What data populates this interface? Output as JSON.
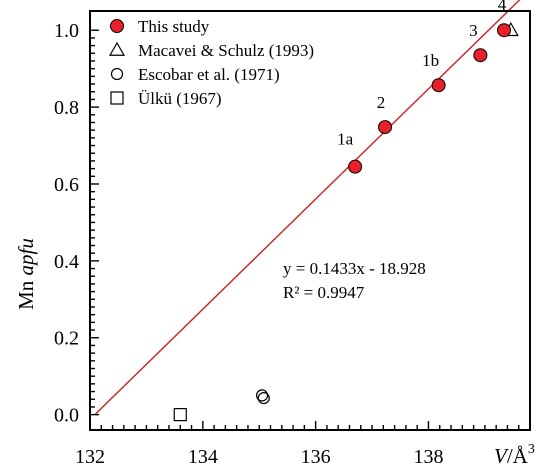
{
  "chart_data": {
    "type": "scatter",
    "xlabel": {
      "italic": "V",
      "rest": "/Å",
      "sup": "3"
    },
    "ylabel": {
      "plain": "Mn ",
      "italic": "apfu"
    },
    "xlim": [
      132,
      139.8
    ],
    "ylim": [
      -0.04,
      1.05
    ],
    "xticks": [
      132,
      134,
      136,
      138
    ],
    "xtick_labels": [
      "132",
      "134",
      "136",
      "138"
    ],
    "yticks": [
      0.0,
      0.2,
      0.4,
      0.6,
      0.8,
      1.0
    ],
    "ytick_labels": [
      "0.0",
      "0.2",
      "0.4",
      "0.6",
      "0.8",
      "1.0"
    ],
    "grid": false,
    "legend_position": "top-left",
    "series": [
      {
        "name": "This study",
        "marker": "filled-circle",
        "color": "#e8202a",
        "points": [
          {
            "x": 136.7,
            "y": 0.645,
            "label": "1a"
          },
          {
            "x": 137.23,
            "y": 0.748,
            "label": "2"
          },
          {
            "x": 138.18,
            "y": 0.857,
            "label": "1b"
          },
          {
            "x": 138.92,
            "y": 0.935,
            "label": "3"
          },
          {
            "x": 139.34,
            "y": 1.0,
            "label": "4"
          }
        ]
      },
      {
        "name": "Macavei & Schulz (1993)",
        "marker": "open-triangle",
        "points": [
          {
            "x": 139.46,
            "y": 1.0
          }
        ]
      },
      {
        "name": "Escobar et al. (1971)",
        "marker": "open-circle",
        "points": [
          {
            "x": 135.05,
            "y": 0.05
          },
          {
            "x": 135.08,
            "y": 0.043
          }
        ]
      },
      {
        "name": "Ülkü (1967)",
        "marker": "open-square",
        "points": [
          {
            "x": 133.6,
            "y": 0.0
          }
        ]
      }
    ],
    "trendline": {
      "slope": 0.1433,
      "intercept": -18.928,
      "x_start": 132.1,
      "x_end": 139.7,
      "color": "#cc2222",
      "equation": "y = 0.1433x - 18.928",
      "r2": "R² = 0.9947"
    }
  }
}
